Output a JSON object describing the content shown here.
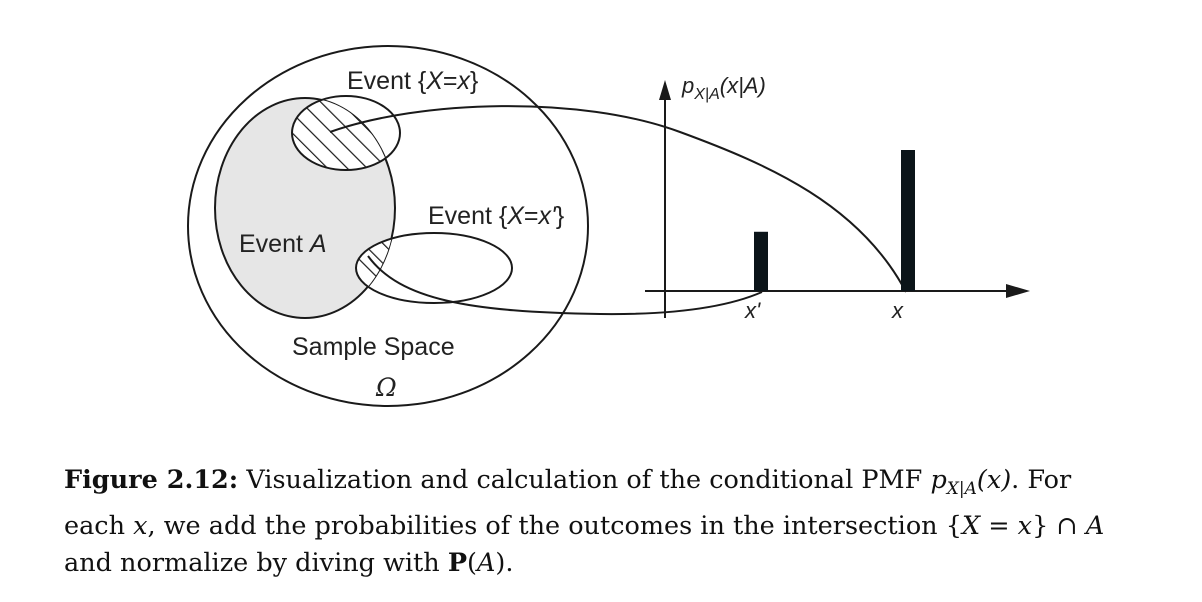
{
  "diagram": {
    "event_x_label_prefix": "Event {",
    "event_x_var": "X",
    "event_x_eq": "=",
    "event_x_val": "x",
    "event_x_close": "}",
    "event_xp_label_prefix": "Event {",
    "event_xp_var": "X",
    "event_xp_eq": "=",
    "event_xp_val": "x'",
    "event_xp_close": "}",
    "event_a_prefix": "Event ",
    "event_a_var": "A",
    "sample_space_label": "Sample Space",
    "omega_label": "Ω",
    "pmf_p": "p",
    "pmf_sub": "X|A",
    "pmf_args": "(x|A)",
    "tick_x_prime": "x'",
    "tick_x": "x",
    "bars": [
      {
        "name": "x'",
        "value": 0.42
      },
      {
        "name": "x",
        "value": 1.0
      }
    ]
  },
  "caption": {
    "label": "Figure 2.12:",
    "line1_text": " Visualization and calculation of the conditional PMF ",
    "line1_p": "p",
    "line1_sub": "X|A",
    "line1_arg": "(x)",
    "line1_end": ". For",
    "line2_a": "each ",
    "line2_x": "x",
    "line2_b": ", we add the probabilities of the outcomes in the intersection {",
    "line2_c": "X",
    "line2_d": " = ",
    "line2_e": "x",
    "line2_f": "} ∩ ",
    "line2_g": "A",
    "line3_a": "and normalize by diving with ",
    "line3_P": "P",
    "line3_b": "(",
    "line3_A": "A",
    "line3_c": ")."
  }
}
